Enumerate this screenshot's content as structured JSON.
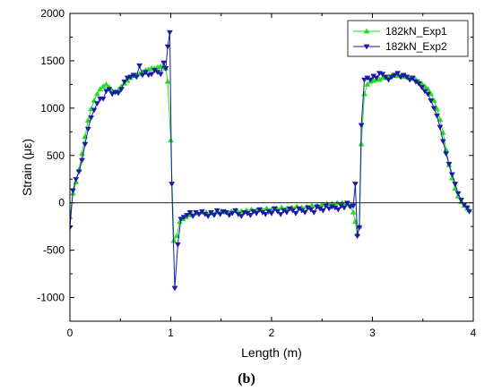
{
  "chart_data": {
    "type": "line",
    "xlabel": "Length (m)",
    "ylabel": "Strain (με)",
    "caption": "(b)",
    "xlim": [
      0,
      4
    ],
    "ylim": [
      -1250,
      2000
    ],
    "xticks": [
      0,
      1,
      2,
      3,
      4
    ],
    "yticks": [
      -1000,
      -500,
      0,
      500,
      1000,
      1500,
      2000
    ],
    "grid": false,
    "legend_position": "top-right",
    "series": [
      {
        "name": "182kN_Exp1",
        "color": "#22dd22",
        "marker": "triangle-up",
        "points": [
          [
            0.0,
            -150
          ],
          [
            0.03,
            100
          ],
          [
            0.06,
            220
          ],
          [
            0.09,
            350
          ],
          [
            0.12,
            520
          ],
          [
            0.15,
            700
          ],
          [
            0.18,
            870
          ],
          [
            0.21,
            990
          ],
          [
            0.24,
            1080
          ],
          [
            0.27,
            1150
          ],
          [
            0.3,
            1200
          ],
          [
            0.33,
            1230
          ],
          [
            0.36,
            1250
          ],
          [
            0.39,
            1220
          ],
          [
            0.42,
            1180
          ],
          [
            0.45,
            1170
          ],
          [
            0.48,
            1190
          ],
          [
            0.51,
            1230
          ],
          [
            0.54,
            1260
          ],
          [
            0.57,
            1290
          ],
          [
            0.6,
            1320
          ],
          [
            0.63,
            1340
          ],
          [
            0.66,
            1350
          ],
          [
            0.69,
            1360
          ],
          [
            0.72,
            1380
          ],
          [
            0.75,
            1400
          ],
          [
            0.78,
            1410
          ],
          [
            0.81,
            1420
          ],
          [
            0.84,
            1420
          ],
          [
            0.87,
            1430
          ],
          [
            0.9,
            1440
          ],
          [
            0.93,
            1440
          ],
          [
            0.95,
            1420
          ],
          [
            0.97,
            1280
          ],
          [
            1.0,
            660
          ],
          [
            1.03,
            -400
          ],
          [
            1.06,
            -350
          ],
          [
            1.09,
            -200
          ],
          [
            1.12,
            -170
          ],
          [
            1.15,
            -150
          ],
          [
            1.18,
            -130
          ],
          [
            1.21,
            -120
          ],
          [
            1.25,
            -110
          ],
          [
            1.3,
            -100
          ],
          [
            1.35,
            -100
          ],
          [
            1.4,
            -110
          ],
          [
            1.45,
            -100
          ],
          [
            1.5,
            -90
          ],
          [
            1.55,
            -100
          ],
          [
            1.6,
            -90
          ],
          [
            1.65,
            -80
          ],
          [
            1.7,
            -90
          ],
          [
            1.75,
            -80
          ],
          [
            1.8,
            -70
          ],
          [
            1.85,
            -80
          ],
          [
            1.9,
            -70
          ],
          [
            1.95,
            -60
          ],
          [
            2.0,
            -70
          ],
          [
            2.05,
            -60
          ],
          [
            2.1,
            -50
          ],
          [
            2.15,
            -60
          ],
          [
            2.2,
            -50
          ],
          [
            2.25,
            -40
          ],
          [
            2.3,
            -50
          ],
          [
            2.35,
            -40
          ],
          [
            2.4,
            -30
          ],
          [
            2.45,
            -30
          ],
          [
            2.5,
            -20
          ],
          [
            2.55,
            -10
          ],
          [
            2.6,
            -10
          ],
          [
            2.65,
            0
          ],
          [
            2.7,
            0
          ],
          [
            2.75,
            -10
          ],
          [
            2.78,
            -30
          ],
          [
            2.81,
            -100
          ],
          [
            2.83,
            -200
          ],
          [
            2.85,
            -330
          ],
          [
            2.87,
            -250
          ],
          [
            2.89,
            620
          ],
          [
            2.92,
            1150
          ],
          [
            2.95,
            1250
          ],
          [
            2.98,
            1280
          ],
          [
            3.01,
            1290
          ],
          [
            3.04,
            1300
          ],
          [
            3.07,
            1300
          ],
          [
            3.1,
            1320
          ],
          [
            3.13,
            1320
          ],
          [
            3.16,
            1330
          ],
          [
            3.19,
            1340
          ],
          [
            3.22,
            1340
          ],
          [
            3.25,
            1340
          ],
          [
            3.28,
            1340
          ],
          [
            3.31,
            1330
          ],
          [
            3.34,
            1330
          ],
          [
            3.37,
            1320
          ],
          [
            3.4,
            1310
          ],
          [
            3.43,
            1300
          ],
          [
            3.46,
            1280
          ],
          [
            3.49,
            1260
          ],
          [
            3.52,
            1230
          ],
          [
            3.55,
            1200
          ],
          [
            3.58,
            1150
          ],
          [
            3.61,
            1080
          ],
          [
            3.64,
            990
          ],
          [
            3.67,
            880
          ],
          [
            3.7,
            740
          ],
          [
            3.73,
            560
          ],
          [
            3.76,
            400
          ],
          [
            3.79,
            260
          ],
          [
            3.82,
            150
          ],
          [
            3.85,
            70
          ],
          [
            3.88,
            10
          ],
          [
            3.91,
            -30
          ],
          [
            3.94,
            -60
          ],
          [
            3.96,
            -80
          ]
        ]
      },
      {
        "name": "182kN_Exp2",
        "color": "#1a1aa8",
        "marker": "triangle-down",
        "points": [
          [
            0.0,
            -260
          ],
          [
            0.03,
            130
          ],
          [
            0.06,
            250
          ],
          [
            0.09,
            330
          ],
          [
            0.12,
            450
          ],
          [
            0.15,
            620
          ],
          [
            0.18,
            780
          ],
          [
            0.21,
            900
          ],
          [
            0.24,
            980
          ],
          [
            0.27,
            1050
          ],
          [
            0.3,
            1100
          ],
          [
            0.33,
            1100
          ],
          [
            0.36,
            1180
          ],
          [
            0.39,
            1200
          ],
          [
            0.42,
            1150
          ],
          [
            0.45,
            1170
          ],
          [
            0.48,
            1160
          ],
          [
            0.51,
            1200
          ],
          [
            0.54,
            1280
          ],
          [
            0.57,
            1320
          ],
          [
            0.6,
            1330
          ],
          [
            0.63,
            1350
          ],
          [
            0.66,
            1330
          ],
          [
            0.69,
            1450
          ],
          [
            0.72,
            1350
          ],
          [
            0.75,
            1380
          ],
          [
            0.78,
            1350
          ],
          [
            0.81,
            1360
          ],
          [
            0.84,
            1400
          ],
          [
            0.87,
            1380
          ],
          [
            0.9,
            1360
          ],
          [
            0.93,
            1480
          ],
          [
            0.95,
            1420
          ],
          [
            0.97,
            1650
          ],
          [
            0.99,
            1800
          ],
          [
            1.01,
            200
          ],
          [
            1.04,
            -900
          ],
          [
            1.07,
            -440
          ],
          [
            1.1,
            -170
          ],
          [
            1.13,
            -150
          ],
          [
            1.16,
            -130
          ],
          [
            1.19,
            -100
          ],
          [
            1.22,
            -140
          ],
          [
            1.25,
            -100
          ],
          [
            1.28,
            -120
          ],
          [
            1.31,
            -90
          ],
          [
            1.34,
            -120
          ],
          [
            1.37,
            -140
          ],
          [
            1.4,
            -100
          ],
          [
            1.43,
            -130
          ],
          [
            1.46,
            -80
          ],
          [
            1.49,
            -120
          ],
          [
            1.52,
            -90
          ],
          [
            1.55,
            -100
          ],
          [
            1.58,
            -130
          ],
          [
            1.61,
            -110
          ],
          [
            1.64,
            -80
          ],
          [
            1.67,
            -120
          ],
          [
            1.7,
            -140
          ],
          [
            1.73,
            -100
          ],
          [
            1.76,
            -110
          ],
          [
            1.79,
            -130
          ],
          [
            1.82,
            -90
          ],
          [
            1.85,
            -110
          ],
          [
            1.88,
            -70
          ],
          [
            1.91,
            -100
          ],
          [
            1.94,
            -120
          ],
          [
            1.97,
            -90
          ],
          [
            2.0,
            -110
          ],
          [
            2.03,
            -60
          ],
          [
            2.06,
            -90
          ],
          [
            2.09,
            -120
          ],
          [
            2.12,
            -80
          ],
          [
            2.15,
            -100
          ],
          [
            2.18,
            -60
          ],
          [
            2.21,
            -80
          ],
          [
            2.24,
            -110
          ],
          [
            2.27,
            -60
          ],
          [
            2.3,
            -80
          ],
          [
            2.33,
            -100
          ],
          [
            2.36,
            -50
          ],
          [
            2.39,
            -70
          ],
          [
            2.42,
            -100
          ],
          [
            2.45,
            -40
          ],
          [
            2.48,
            -60
          ],
          [
            2.51,
            -80
          ],
          [
            2.54,
            -30
          ],
          [
            2.57,
            -60
          ],
          [
            2.6,
            -40
          ],
          [
            2.63,
            -50
          ],
          [
            2.66,
            -70
          ],
          [
            2.69,
            -30
          ],
          [
            2.72,
            -50
          ],
          [
            2.75,
            0
          ],
          [
            2.78,
            -40
          ],
          [
            2.81,
            -30
          ],
          [
            2.83,
            200
          ],
          [
            2.85,
            -350
          ],
          [
            2.87,
            -260
          ],
          [
            2.89,
            820
          ],
          [
            2.92,
            1300
          ],
          [
            2.95,
            1320
          ],
          [
            2.98,
            1300
          ],
          [
            3.01,
            1340
          ],
          [
            3.04,
            1320
          ],
          [
            3.07,
            1370
          ],
          [
            3.1,
            1360
          ],
          [
            3.13,
            1330
          ],
          [
            3.16,
            1300
          ],
          [
            3.19,
            1330
          ],
          [
            3.22,
            1350
          ],
          [
            3.25,
            1370
          ],
          [
            3.28,
            1330
          ],
          [
            3.31,
            1350
          ],
          [
            3.34,
            1330
          ],
          [
            3.37,
            1300
          ],
          [
            3.4,
            1320
          ],
          [
            3.43,
            1280
          ],
          [
            3.46,
            1260
          ],
          [
            3.49,
            1220
          ],
          [
            3.52,
            1180
          ],
          [
            3.55,
            1150
          ],
          [
            3.58,
            1080
          ],
          [
            3.61,
            1000
          ],
          [
            3.64,
            920
          ],
          [
            3.67,
            800
          ],
          [
            3.7,
            650
          ],
          [
            3.73,
            520
          ],
          [
            3.76,
            410
          ],
          [
            3.79,
            300
          ],
          [
            3.82,
            200
          ],
          [
            3.85,
            100
          ],
          [
            3.88,
            30
          ],
          [
            3.91,
            -20
          ],
          [
            3.94,
            -50
          ],
          [
            3.96,
            -90
          ]
        ]
      }
    ]
  }
}
